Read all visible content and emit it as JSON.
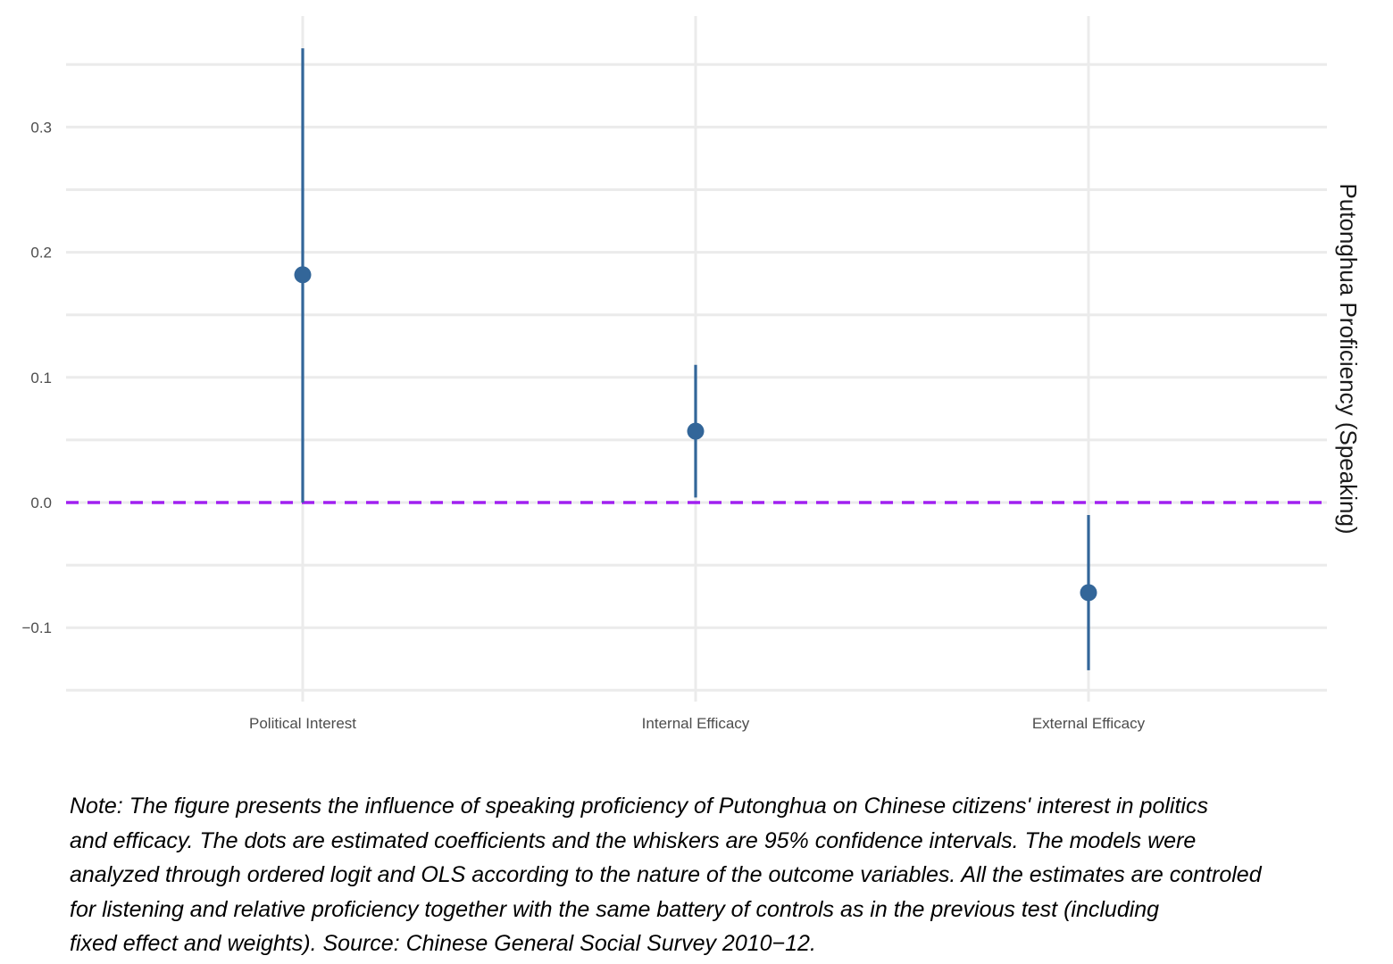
{
  "chart_data": {
    "type": "scatter",
    "subtype": "coefficient plot with 95% confidence intervals",
    "strip_label": "Putonghua Proficiency (Speaking)",
    "categories": [
      "Political Interest",
      "Internal Efficacy",
      "External Efficacy"
    ],
    "estimates": [
      0.182,
      0.057,
      -0.072
    ],
    "ci_low": [
      0.0,
      0.004,
      -0.134
    ],
    "ci_high": [
      0.363,
      0.11,
      -0.01
    ],
    "reference_line": 0.0,
    "ylim": [
      -0.15,
      0.37
    ],
    "yticks": [
      -0.1,
      0.0,
      0.1,
      0.2,
      0.3
    ],
    "ytick_labels": [
      "−0.1",
      "0.0",
      "0.1",
      "0.2",
      "0.3"
    ],
    "grid": true,
    "legend": "none",
    "colors": {
      "point": "#336699",
      "reference_line": "#a020f0",
      "grid": "#ebebeb"
    }
  },
  "note_lines": [
    "Note: The figure presents the influence of speaking proficiency of Putonghua on Chinese citizens' interest in politics",
    "and efficacy. The dots are estimated coefficients and the whiskers are 95% confidence intervals. The models were",
    "analyzed through ordered logit and OLS according to the nature of the outcome variables. All the estimates are controled",
    "for listening and relative proficiency together with the same battery of controls as in the previous test (including",
    "fixed effect and weights). Source: Chinese General Social Survey 2010−12."
  ]
}
